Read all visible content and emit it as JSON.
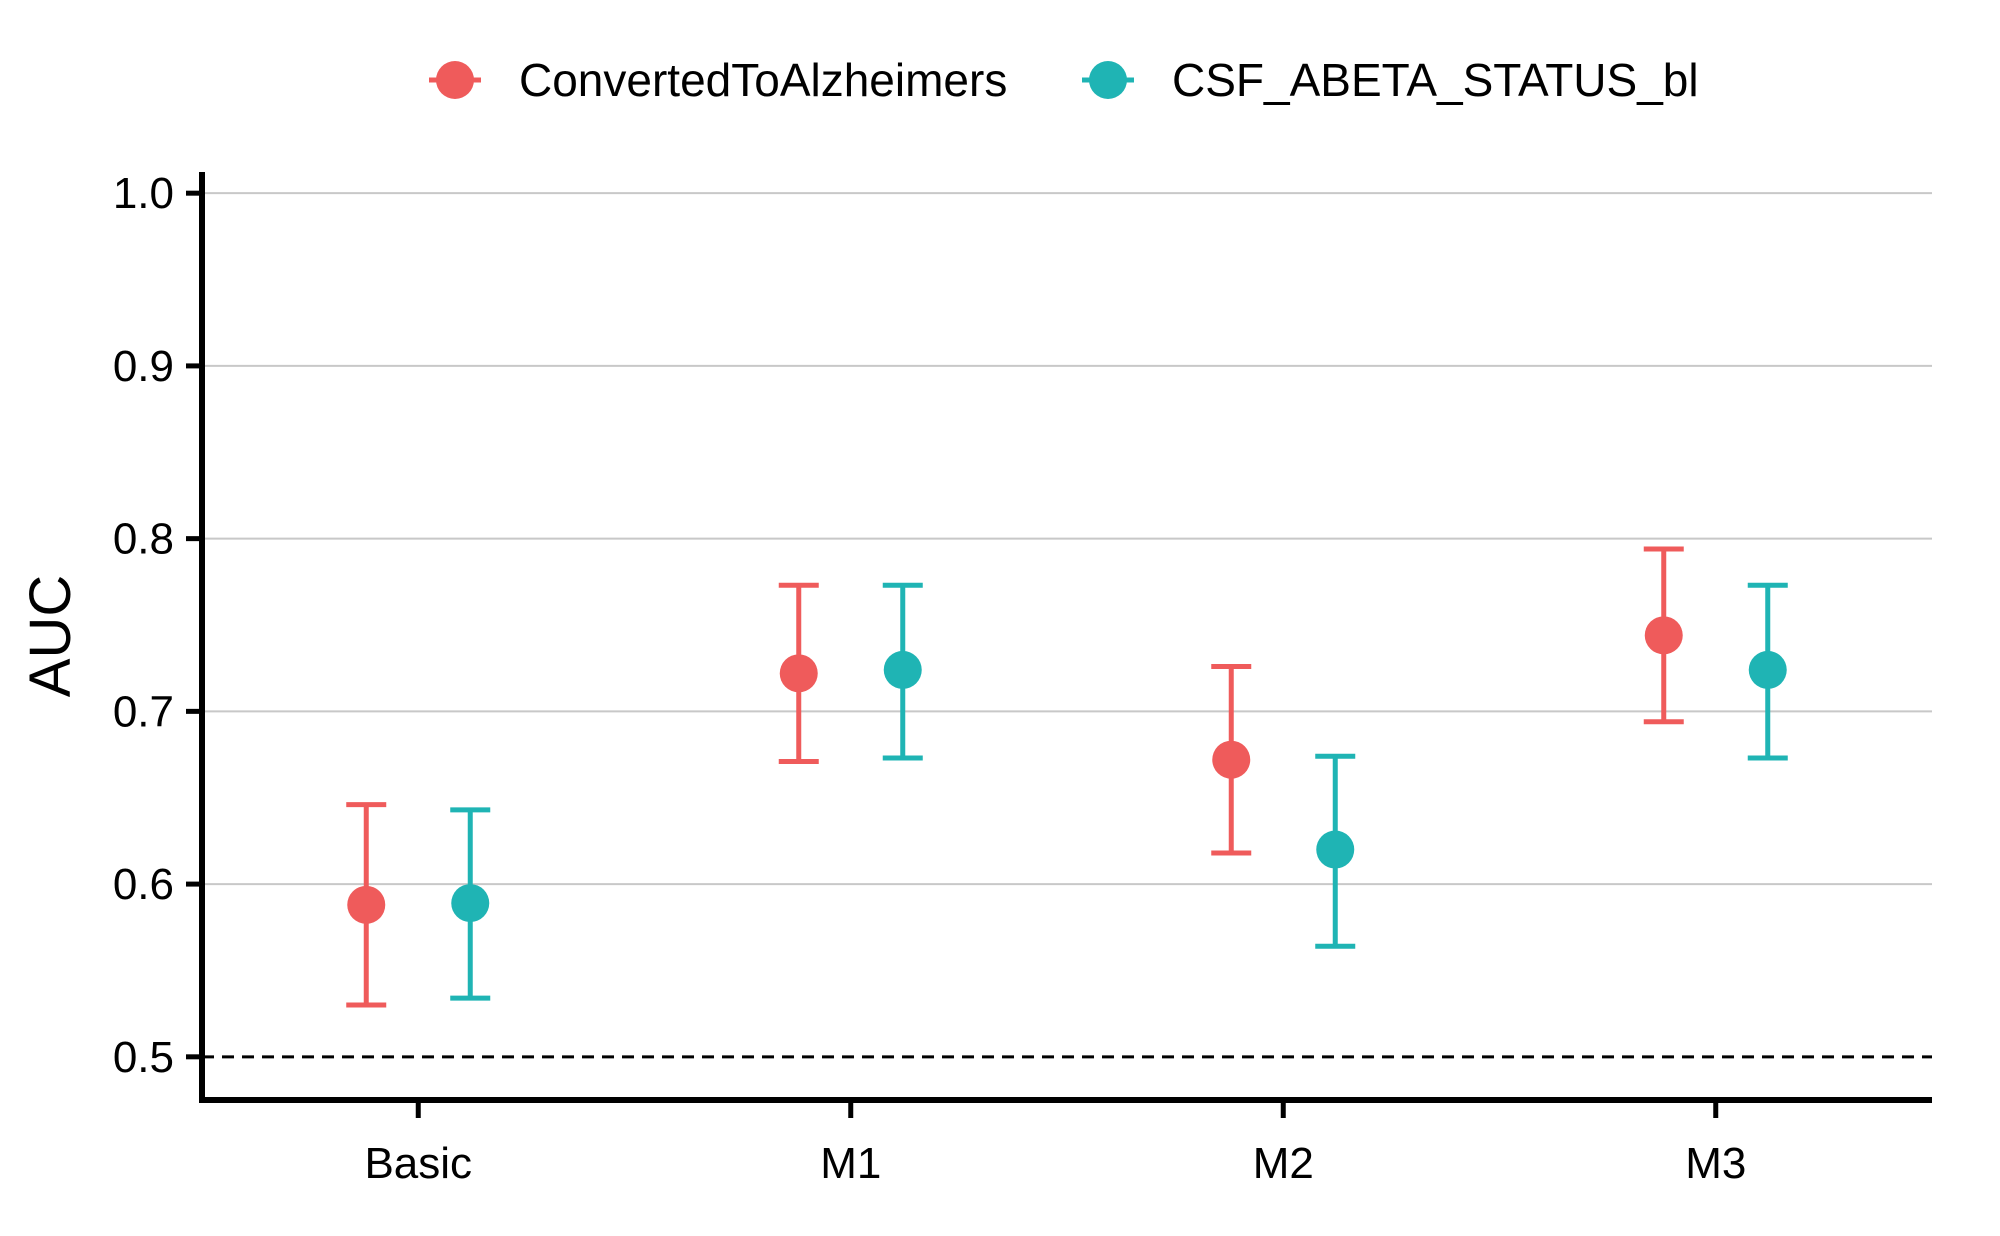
{
  "chart_data": {
    "type": "scatter",
    "error_bars": true,
    "categories": [
      "Basic",
      "M1",
      "M2",
      "M3"
    ],
    "series": [
      {
        "name": "ConvertedToAlzheimers",
        "color": "#ef5b5b",
        "values": [
          0.588,
          0.722,
          0.672,
          0.744
        ],
        "lower": [
          0.53,
          0.671,
          0.618,
          0.694
        ],
        "upper": [
          0.646,
          0.773,
          0.726,
          0.794
        ]
      },
      {
        "name": "CSF_ABETA_STATUS_bl",
        "color": "#1fb4b4",
        "values": [
          0.589,
          0.724,
          0.62,
          0.724
        ],
        "lower": [
          0.534,
          0.673,
          0.564,
          0.673
        ],
        "upper": [
          0.643,
          0.773,
          0.674,
          0.773
        ]
      }
    ],
    "xlabel": "",
    "ylabel": "AUC",
    "ylim": [
      0.475,
      1.025
    ],
    "yticks": [
      0.5,
      0.6,
      0.7,
      0.8,
      0.9,
      1.0
    ],
    "ytick_labels": [
      "0.5",
      "0.6",
      "0.7",
      "0.8",
      "0.9",
      "1.0"
    ],
    "reference_line": {
      "y": 0.5,
      "style": "dashed"
    },
    "grid": "horizontal",
    "legend_position": "top"
  }
}
